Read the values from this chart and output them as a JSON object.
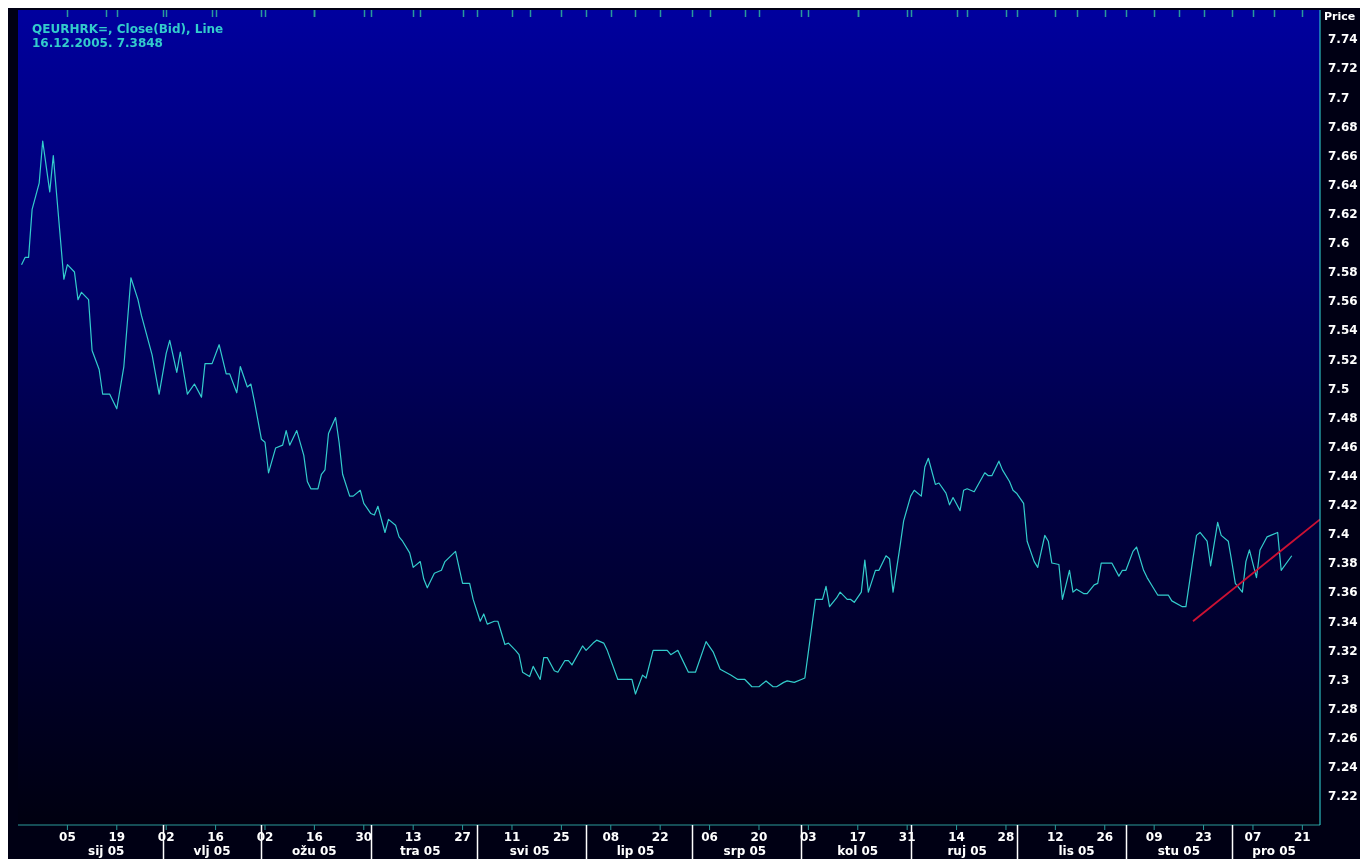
{
  "chart_data": {
    "type": "line",
    "title": "QEURHRK=, Close(Bid), Line",
    "subtitle": "16.12.2005. 7.3848",
    "ylabel": "Price",
    "xlim": [
      "2004-12-22",
      "2005-12-26"
    ],
    "xticks": [
      {
        "value": "2005-01-05",
        "label": "05"
      },
      {
        "value": "2005-01-19",
        "label": "19"
      },
      {
        "value": "2005-02-02",
        "label": "02"
      },
      {
        "value": "2005-02-16",
        "label": "16"
      },
      {
        "value": "2005-03-02",
        "label": "02"
      },
      {
        "value": "2005-03-16",
        "label": "16"
      },
      {
        "value": "2005-03-30",
        "label": "30"
      },
      {
        "value": "2005-04-13",
        "label": "13"
      },
      {
        "value": "2005-04-27",
        "label": "27"
      },
      {
        "value": "2005-05-11",
        "label": "11"
      },
      {
        "value": "2005-05-25",
        "label": "25"
      },
      {
        "value": "2005-06-08",
        "label": "08"
      },
      {
        "value": "2005-06-22",
        "label": "22"
      },
      {
        "value": "2005-07-06",
        "label": "06"
      },
      {
        "value": "2005-07-20",
        "label": "20"
      },
      {
        "value": "2005-08-03",
        "label": "03"
      },
      {
        "value": "2005-08-17",
        "label": "17"
      },
      {
        "value": "2005-08-31",
        "label": "31"
      },
      {
        "value": "2005-09-14",
        "label": "14"
      },
      {
        "value": "2005-09-28",
        "label": "28"
      },
      {
        "value": "2005-10-12",
        "label": "12"
      },
      {
        "value": "2005-10-26",
        "label": "26"
      },
      {
        "value": "2005-11-09",
        "label": "09"
      },
      {
        "value": "2005-11-23",
        "label": "23"
      },
      {
        "value": "2005-12-07",
        "label": "07"
      },
      {
        "value": "2005-12-21",
        "label": "21"
      }
    ],
    "x2lim": [
      "2004-12-22",
      "2005-12-26"
    ],
    "x2ticks": [
      {
        "value": "2005-01-16",
        "label": "sij 05"
      },
      {
        "value": "2005-02-01",
        "label": null
      },
      {
        "value": "2005-02-15",
        "label": "vlj 05"
      },
      {
        "value": "2005-03-01",
        "label": null
      },
      {
        "value": "2005-03-16",
        "label": "ožu 05"
      },
      {
        "value": "2005-04-01",
        "label": null
      },
      {
        "value": "2005-04-15",
        "label": "tra 05"
      },
      {
        "value": "2005-05-01",
        "label": null
      },
      {
        "value": "2005-05-16",
        "label": "svi 05"
      },
      {
        "value": "2005-06-01",
        "label": null
      },
      {
        "value": "2005-06-15",
        "label": "lip 05"
      },
      {
        "value": "2005-07-01",
        "label": null
      },
      {
        "value": "2005-07-16",
        "label": "srp 05"
      },
      {
        "value": "2005-08-01",
        "label": null
      },
      {
        "value": "2005-08-17",
        "label": "kol 05"
      },
      {
        "value": "2005-09-01",
        "label": null
      },
      {
        "value": "2005-09-17",
        "label": "ruj 05"
      },
      {
        "value": "2005-10-01",
        "label": null
      },
      {
        "value": "2005-10-18",
        "label": "lis 05"
      },
      {
        "value": "2005-11-01",
        "label": null
      },
      {
        "value": "2005-11-16",
        "label": "stu 05"
      },
      {
        "value": "2005-12-01",
        "label": null
      },
      {
        "value": "2005-12-13",
        "label": "pro 05"
      }
    ],
    "ylim": [
      7.2,
      7.76
    ],
    "yticks": [
      7.22,
      7.24,
      7.26,
      7.28,
      7.3,
      7.32,
      7.34,
      7.36,
      7.38,
      7.4,
      7.42,
      7.44,
      7.46,
      7.48,
      7.5,
      7.52,
      7.54,
      7.56,
      7.58,
      7.6,
      7.62,
      7.64,
      7.66,
      7.68,
      7.7,
      7.72,
      7.74
    ],
    "marker": "none",
    "series": [
      {
        "color": "#33cccc",
        "x": [
          "2004-12-23",
          "2004-12-24",
          "2004-12-25",
          "2004-12-26",
          "2004-12-28",
          "2004-12-29",
          "2004-12-31",
          "2005-01-01",
          "2005-01-04",
          "2005-01-05",
          "2005-01-07",
          "2005-01-08",
          "2005-01-09",
          "2005-01-11",
          "2005-01-12",
          "2005-01-14",
          "2005-01-15",
          "2005-01-17",
          "2005-01-19",
          "2005-01-21",
          "2005-01-23",
          "2005-01-25",
          "2005-01-26",
          "2005-01-29",
          "2005-01-31",
          "2005-02-02",
          "2005-02-03",
          "2005-02-05",
          "2005-02-06",
          "2005-02-08",
          "2005-02-10",
          "2005-02-12",
          "2005-02-13",
          "2005-02-15",
          "2005-02-17",
          "2005-02-19",
          "2005-02-20",
          "2005-02-22",
          "2005-02-23",
          "2005-02-25",
          "2005-02-26",
          "2005-02-27",
          "2005-03-01",
          "2005-03-02",
          "2005-03-03",
          "2005-03-05",
          "2005-03-07",
          "2005-03-08",
          "2005-03-09",
          "2005-03-11",
          "2005-03-13",
          "2005-03-14",
          "2005-03-15",
          "2005-03-17",
          "2005-03-18",
          "2005-03-19",
          "2005-03-20",
          "2005-03-22",
          "2005-03-23",
          "2005-03-24",
          "2005-03-26",
          "2005-03-27",
          "2005-03-29",
          "2005-03-30",
          "2005-04-01",
          "2005-04-02",
          "2005-04-03",
          "2005-04-05",
          "2005-04-06",
          "2005-04-08",
          "2005-04-09",
          "2005-04-10",
          "2005-04-12",
          "2005-04-13",
          "2005-04-15",
          "2005-04-16",
          "2005-04-17",
          "2005-04-19",
          "2005-04-21",
          "2005-04-22",
          "2005-04-25",
          "2005-04-27",
          "2005-04-29",
          "2005-04-30",
          "2005-05-02",
          "2005-05-03",
          "2005-05-04",
          "2005-05-06",
          "2005-05-07",
          "2005-05-09",
          "2005-05-10",
          "2005-05-12",
          "2005-05-13",
          "2005-05-14",
          "2005-05-16",
          "2005-05-17",
          "2005-05-19",
          "2005-05-20",
          "2005-05-21",
          "2005-05-23",
          "2005-05-24",
          "2005-05-26",
          "2005-05-27",
          "2005-05-28",
          "2005-05-31",
          "2005-06-01",
          "2005-06-03",
          "2005-06-04",
          "2005-06-06",
          "2005-06-07",
          "2005-06-10",
          "2005-06-13",
          "2005-06-14",
          "2005-06-15",
          "2005-06-17",
          "2005-06-18",
          "2005-06-20",
          "2005-06-24",
          "2005-06-25",
          "2005-06-27",
          "2005-06-28",
          "2005-06-30",
          "2005-07-02",
          "2005-07-05",
          "2005-07-07",
          "2005-07-09",
          "2005-07-12",
          "2005-07-14",
          "2005-07-16",
          "2005-07-18",
          "2005-07-20",
          "2005-07-22",
          "2005-07-24",
          "2005-07-25",
          "2005-07-27",
          "2005-07-28",
          "2005-07-30",
          "2005-08-01",
          "2005-08-02",
          "2005-08-03",
          "2005-08-05",
          "2005-08-07",
          "2005-08-08",
          "2005-08-09",
          "2005-08-11",
          "2005-08-12",
          "2005-08-14",
          "2005-08-15",
          "2005-08-16",
          "2005-08-18",
          "2005-08-19",
          "2005-08-20",
          "2005-08-22",
          "2005-08-23",
          "2005-08-25",
          "2005-08-26",
          "2005-08-27",
          "2005-08-29",
          "2005-08-30",
          "2005-09-01",
          "2005-09-02",
          "2005-09-04",
          "2005-09-05",
          "2005-09-06",
          "2005-09-08",
          "2005-09-09",
          "2005-09-11",
          "2005-09-12",
          "2005-09-13",
          "2005-09-15",
          "2005-09-16",
          "2005-09-17",
          "2005-09-19",
          "2005-09-22",
          "2005-09-23",
          "2005-09-24",
          "2005-09-26",
          "2005-09-27",
          "2005-09-29",
          "2005-09-30",
          "2005-10-01",
          "2005-10-03",
          "2005-10-04",
          "2005-10-06",
          "2005-10-07",
          "2005-10-09",
          "2005-10-10",
          "2005-10-11",
          "2005-10-13",
          "2005-10-14",
          "2005-10-16",
          "2005-10-17",
          "2005-10-18",
          "2005-10-20",
          "2005-10-21",
          "2005-10-23",
          "2005-10-24",
          "2005-10-25",
          "2005-10-28",
          "2005-10-30",
          "2005-10-31",
          "2005-11-01",
          "2005-11-03",
          "2005-11-04",
          "2005-11-06",
          "2005-11-07",
          "2005-11-09",
          "2005-11-10",
          "2005-11-13",
          "2005-11-14",
          "2005-11-17",
          "2005-11-18",
          "2005-11-20",
          "2005-11-21",
          "2005-11-22",
          "2005-11-24",
          "2005-11-25",
          "2005-11-27",
          "2005-11-28",
          "2005-11-30",
          "2005-12-01",
          "2005-12-02",
          "2005-12-04",
          "2005-12-05",
          "2005-12-06",
          "2005-12-08",
          "2005-12-09",
          "2005-12-11",
          "2005-12-12",
          "2005-12-14",
          "2005-12-15",
          "2005-12-18"
        ],
        "values": [
          7.585,
          7.59,
          7.59,
          7.623,
          7.641,
          7.67,
          7.635,
          7.66,
          7.575,
          7.585,
          7.58,
          7.561,
          7.566,
          7.561,
          7.526,
          7.513,
          7.496,
          7.496,
          7.486,
          7.515,
          7.576,
          7.561,
          7.55,
          7.523,
          7.496,
          7.524,
          7.533,
          7.511,
          7.525,
          7.496,
          7.503,
          7.494,
          7.517,
          7.517,
          7.53,
          7.51,
          7.51,
          7.497,
          7.515,
          7.501,
          7.503,
          7.491,
          7.465,
          7.463,
          7.442,
          7.459,
          7.461,
          7.471,
          7.461,
          7.471,
          7.454,
          7.436,
          7.431,
          7.431,
          7.441,
          7.444,
          7.469,
          7.48,
          7.463,
          7.441,
          7.426,
          7.426,
          7.43,
          7.421,
          7.414,
          7.413,
          7.419,
          7.401,
          7.41,
          7.406,
          7.398,
          7.395,
          7.387,
          7.377,
          7.381,
          7.369,
          7.363,
          7.373,
          7.375,
          7.381,
          7.388,
          7.366,
          7.366,
          7.355,
          7.34,
          7.345,
          7.338,
          7.34,
          7.34,
          7.324,
          7.325,
          7.32,
          7.317,
          7.305,
          7.302,
          7.309,
          7.3,
          7.315,
          7.315,
          7.306,
          7.305,
          7.313,
          7.313,
          7.31,
          7.323,
          7.32,
          7.325,
          7.327,
          7.325,
          7.32,
          7.3,
          7.3,
          7.3,
          7.29,
          7.303,
          7.301,
          7.32,
          7.32,
          7.317,
          7.32,
          7.315,
          7.305,
          7.305,
          7.326,
          7.319,
          7.307,
          7.303,
          7.3,
          7.3,
          7.295,
          7.295,
          7.299,
          7.295,
          7.295,
          7.298,
          7.299,
          7.298,
          7.3,
          7.301,
          7.319,
          7.355,
          7.355,
          7.364,
          7.35,
          7.356,
          7.36,
          7.355,
          7.355,
          7.353,
          7.36,
          7.382,
          7.36,
          7.375,
          7.375,
          7.385,
          7.383,
          7.36,
          7.392,
          7.409,
          7.426,
          7.43,
          7.426,
          7.446,
          7.452,
          7.434,
          7.435,
          7.428,
          7.42,
          7.425,
          7.416,
          7.43,
          7.431,
          7.429,
          7.442,
          7.44,
          7.44,
          7.45,
          7.444,
          7.436,
          7.43,
          7.428,
          7.421,
          7.395,
          7.381,
          7.377,
          7.399,
          7.395,
          7.38,
          7.379,
          7.355,
          7.375,
          7.36,
          7.362,
          7.359,
          7.359,
          7.365,
          7.366,
          7.38,
          7.38,
          7.371,
          7.375,
          7.375,
          7.388,
          7.391,
          7.375,
          7.37,
          7.362,
          7.358,
          7.358,
          7.354,
          7.35,
          7.35,
          7.383,
          7.399,
          7.401,
          7.395,
          7.378,
          7.408,
          7.399,
          7.395,
          7.381,
          7.366,
          7.36,
          7.381,
          7.389,
          7.37,
          7.389,
          7.398,
          7.399,
          7.401,
          7.375,
          7.385
        ]
      },
      {
        "type": "line",
        "color": "#cc1133",
        "x": [
          "2005-11-20",
          "2005-12-26"
        ],
        "values": [
          7.34,
          7.41
        ]
      }
    ]
  }
}
